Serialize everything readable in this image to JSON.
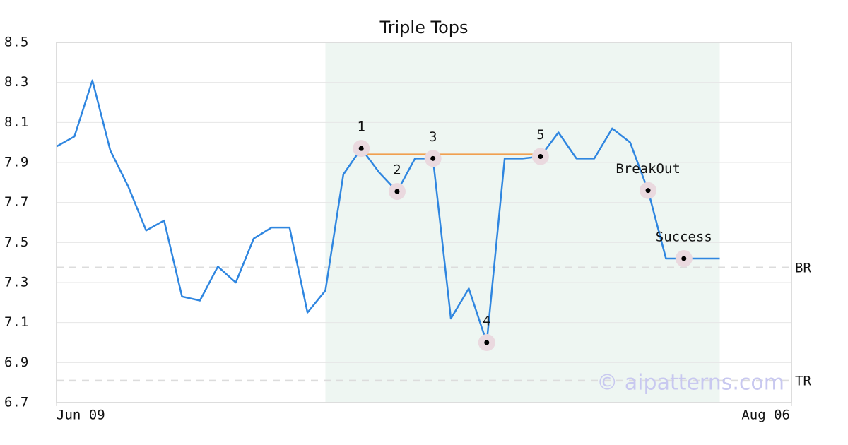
{
  "chart_data": {
    "type": "line",
    "title": "Triple Tops",
    "x": [
      0,
      1,
      2,
      3,
      4,
      5,
      6,
      7,
      8,
      9,
      10,
      11,
      12,
      13,
      14,
      15,
      16,
      17,
      18,
      19,
      20,
      21,
      22,
      23,
      24,
      25,
      26,
      27,
      28,
      29,
      30,
      31,
      32,
      33,
      34,
      35,
      36,
      37
    ],
    "xlim": [
      0,
      41
    ],
    "xticks": [
      {
        "value": 0,
        "label": "Jun 09"
      },
      {
        "value": 41,
        "label": "Aug 06"
      }
    ],
    "series": [
      {
        "color": "#2f86e0",
        "values": [
          7.98,
          8.03,
          8.31,
          7.96,
          7.78,
          7.56,
          7.61,
          7.23,
          7.21,
          7.38,
          7.3,
          7.52,
          7.575,
          7.575,
          7.15,
          7.26,
          7.84,
          7.97,
          7.85,
          7.755,
          7.92,
          7.92,
          7.12,
          7.27,
          7.0,
          7.92,
          7.92,
          7.93,
          8.05,
          7.92,
          7.92,
          8.07,
          8.0,
          7.76,
          7.42,
          7.42,
          7.42,
          7.42
        ]
      }
    ],
    "ylim": [
      6.7,
      8.5
    ],
    "yticks": [
      6.7,
      6.9,
      7.1,
      7.3,
      7.5,
      7.7,
      7.9,
      8.1,
      8.3,
      8.5
    ],
    "grid": true,
    "shaded_region": {
      "x": [
        15,
        37
      ],
      "color": "#eef6f2"
    },
    "pattern_line": {
      "x": [
        17,
        27
      ],
      "y": 7.94,
      "color": "#f0a050"
    },
    "hlines": [
      {
        "label": "BR",
        "y": 7.375
      },
      {
        "label": "TR",
        "y": 6.81
      }
    ],
    "annotations": [
      {
        "label": "1",
        "x": 17,
        "y": 7.97
      },
      {
        "label": "2",
        "x": 19,
        "y": 7.755
      },
      {
        "label": "3",
        "x": 21,
        "y": 7.92
      },
      {
        "label": "4",
        "x": 24,
        "y": 7.0
      },
      {
        "label": "5",
        "x": 27,
        "y": 7.93
      },
      {
        "label": "BreakOut",
        "x": 33,
        "y": 7.76
      },
      {
        "label": "Success",
        "x": 35,
        "y": 7.42
      }
    ],
    "watermark": "© aipatterns.com"
  }
}
